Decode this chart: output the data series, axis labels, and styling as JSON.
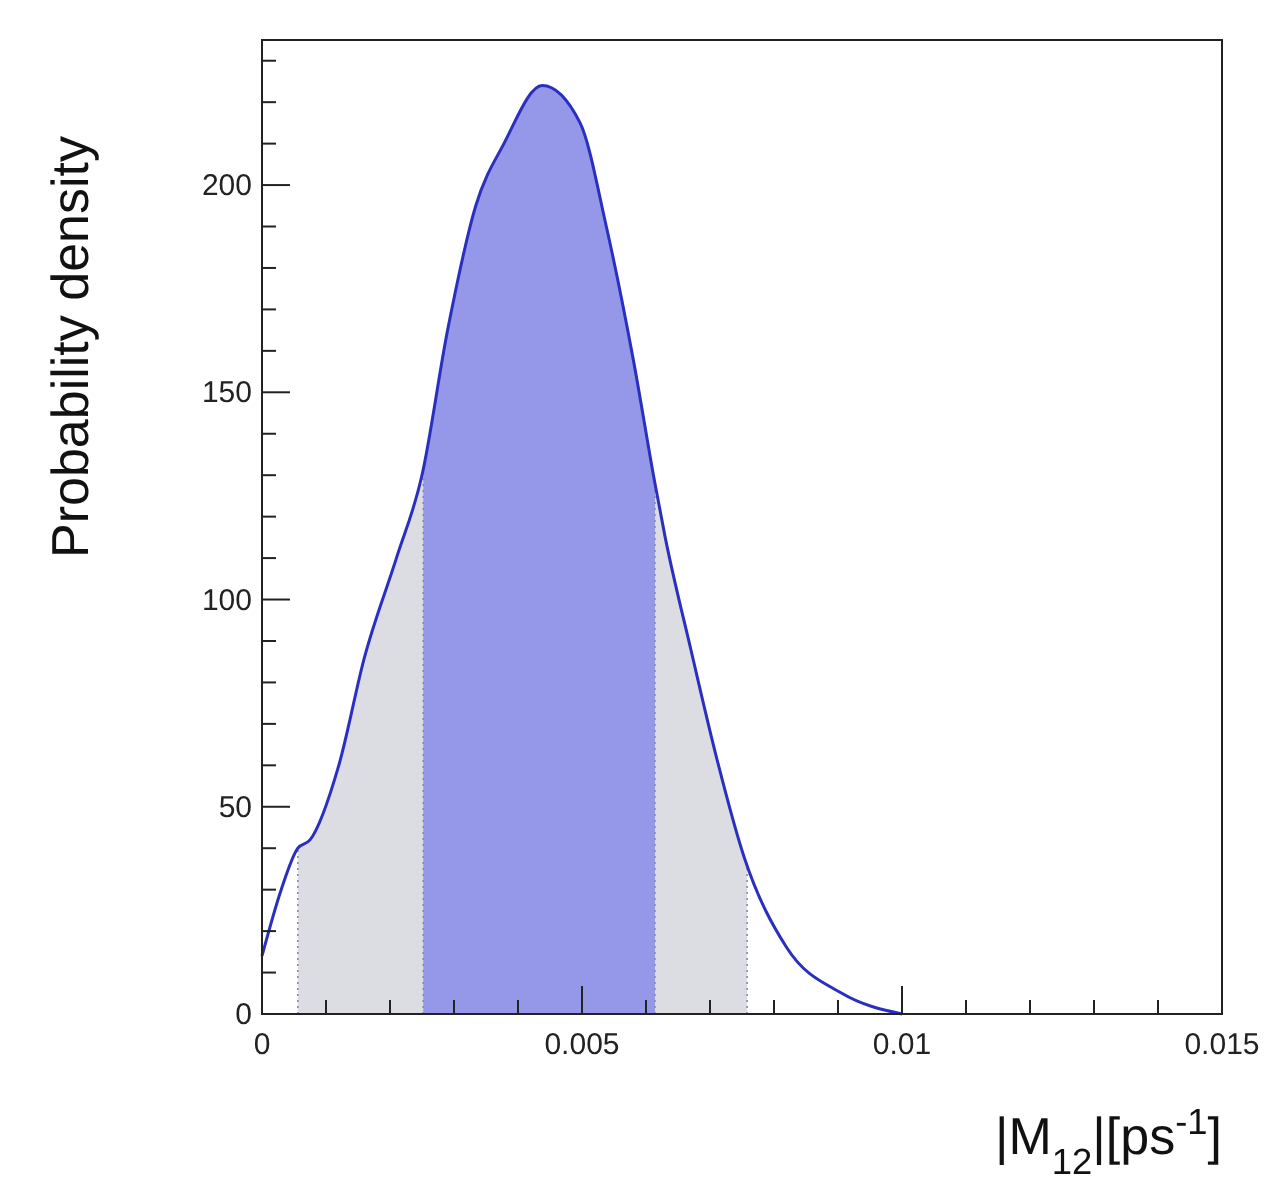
{
  "chart_data": {
    "type": "line",
    "xlabel": "|M$_{12}$|[ps$^{-1}$]",
    "ylabel": "Probability density",
    "xlim": [
      0,
      0.015
    ],
    "ylim": [
      0,
      235
    ],
    "xticks": [
      0,
      {
        "value": 0.001,
        "label": null
      },
      {
        "value": 0.002,
        "label": null
      },
      {
        "value": 0.003,
        "label": null
      },
      {
        "value": 0.004,
        "label": null
      },
      0.005,
      {
        "value": 0.006,
        "label": null
      },
      {
        "value": 0.007,
        "label": null
      },
      {
        "value": 0.008,
        "label": null
      },
      {
        "value": 0.009,
        "label": null
      },
      0.01,
      {
        "value": 0.011,
        "label": null
      },
      {
        "value": 0.012,
        "label": null
      },
      {
        "value": 0.013,
        "label": null
      },
      {
        "value": 0.014,
        "label": null
      },
      0.015
    ],
    "yticks": [
      0,
      {
        "value": 10,
        "label": null
      },
      {
        "value": 20,
        "label": null
      },
      {
        "value": 30,
        "label": null
      },
      {
        "value": 40,
        "label": null
      },
      50,
      {
        "value": 60,
        "label": null
      },
      {
        "value": 70,
        "label": null
      },
      {
        "value": 80,
        "label": null
      },
      {
        "value": 90,
        "label": null
      },
      100,
      {
        "value": 110,
        "label": null
      },
      {
        "value": 120,
        "label": null
      },
      {
        "value": 130,
        "label": null
      },
      {
        "value": 140,
        "label": null
      },
      150,
      {
        "value": 160,
        "label": null
      },
      {
        "value": 170,
        "label": null
      },
      {
        "value": 180,
        "label": null
      },
      {
        "value": 190,
        "label": null
      },
      200,
      {
        "value": 210,
        "label": null
      },
      {
        "value": 220,
        "label": null
      },
      {
        "value": 230,
        "label": null
      }
    ],
    "grid": false,
    "marker": "none",
    "line_style": "solid",
    "bands": [
      {
        "axis": "x",
        "from": 0.00056,
        "to": 0.00758,
        "color": "#dcdde3"
      },
      {
        "axis": "x",
        "from": 0.00252,
        "to": 0.00614,
        "color": "#9597e8"
      }
    ],
    "series": [
      {
        "color": "#2a2fc0",
        "x": [
          0,
          0.0003,
          0.00056,
          0.00075,
          0.0012,
          0.0016,
          0.0021,
          0.0025,
          0.0029,
          0.00334,
          0.00378,
          0.00438,
          0.00497,
          0.00538,
          0.0058,
          0.00614,
          0.0063,
          0.0067,
          0.0071,
          0.00753,
          0.0082,
          0.00906,
          0.01
        ],
        "values": [
          14,
          30,
          40,
          42,
          60,
          86,
          110,
          130,
          165,
          195,
          210,
          224,
          215,
          190,
          158,
          128,
          115,
          88,
          62,
          38,
          16,
          5,
          0
        ]
      }
    ]
  }
}
